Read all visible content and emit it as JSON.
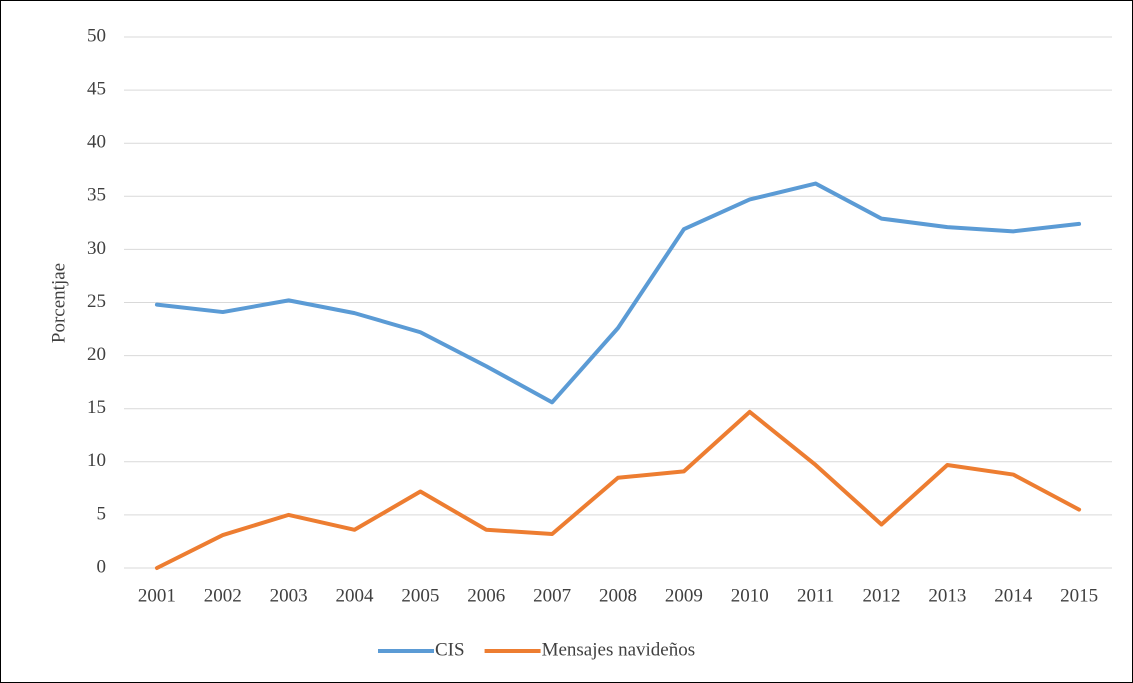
{
  "chart_data": {
    "type": "line",
    "ylabel": "Porcentjae",
    "categories": [
      "2001",
      "2002",
      "2003",
      "2004",
      "2005",
      "2006",
      "2007",
      "2008",
      "2009",
      "2010",
      "2011",
      "2012",
      "2013",
      "2014",
      "2015"
    ],
    "series": [
      {
        "name": "CIS",
        "color": "#5b9bd5",
        "values": [
          24.8,
          24.1,
          25.2,
          24.0,
          22.2,
          19.0,
          15.6,
          22.6,
          31.9,
          34.7,
          36.2,
          32.9,
          32.1,
          31.7,
          32.4
        ]
      },
      {
        "name": "Mensajes navideños",
        "color": "#ed7d31",
        "values": [
          0,
          3.1,
          5.0,
          3.6,
          7.2,
          3.6,
          3.2,
          8.5,
          9.1,
          14.7,
          9.7,
          4.1,
          9.7,
          8.8,
          5.5
        ]
      }
    ],
    "ylim": [
      0,
      50
    ],
    "yticks": [
      0,
      5,
      10,
      15,
      20,
      25,
      30,
      35,
      40,
      45,
      50
    ],
    "grid": true,
    "legend": "bottom"
  }
}
